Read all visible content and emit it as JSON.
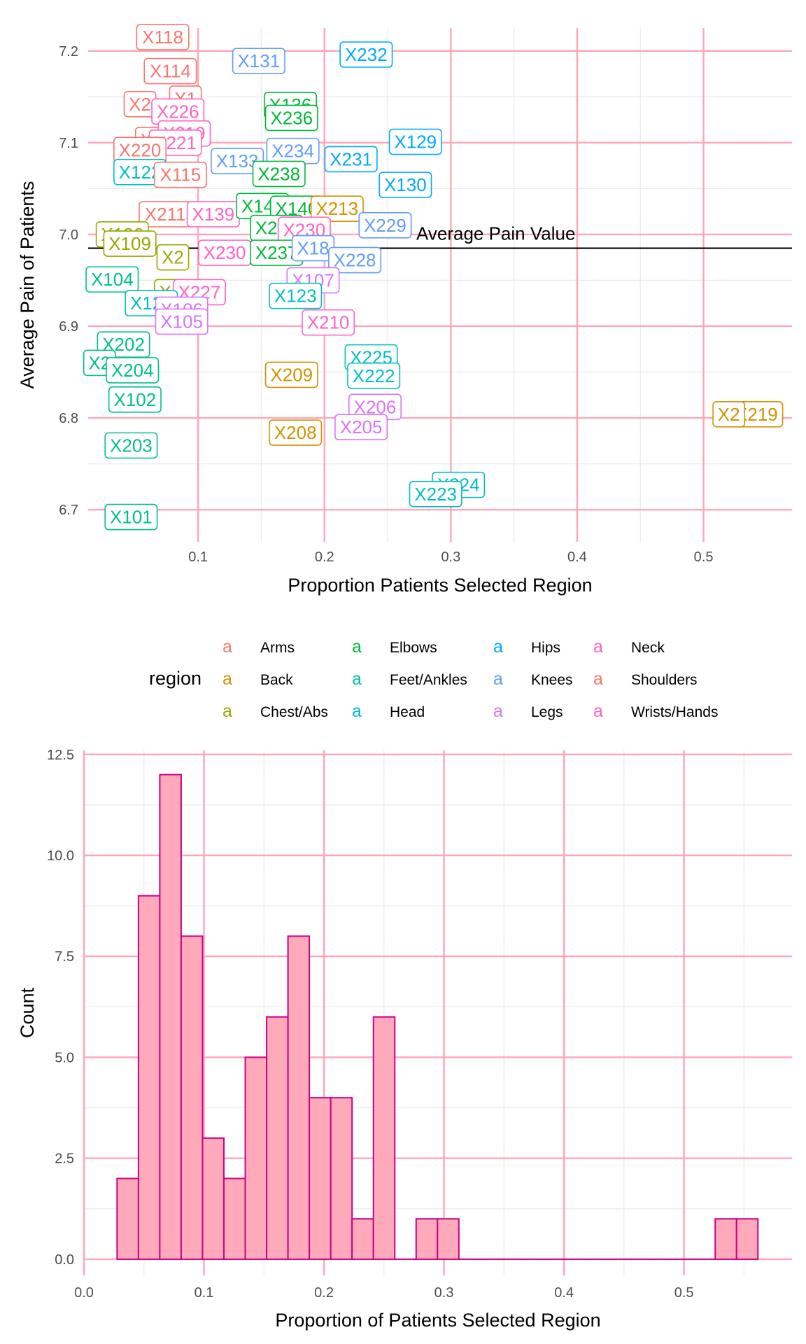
{
  "chart_data": [
    {
      "type": "scatter",
      "title": "",
      "xlabel": "Proportion Patients Selected Region",
      "ylabel": "Average Pain of Patients",
      "xlim": [
        0.013,
        0.57
      ],
      "ylim": [
        6.665,
        7.225
      ],
      "x_ticks": [
        0.1,
        0.2,
        0.3,
        0.4,
        0.5
      ],
      "x_tick_labels": [
        "0.1",
        "0.2",
        "0.3",
        "0.4",
        "0.5"
      ],
      "y_ticks": [
        6.7,
        6.8,
        6.9,
        7.0,
        7.1,
        7.2
      ],
      "y_tick_labels": [
        "6.7",
        "6.8",
        "6.9",
        "7.0",
        "7.1",
        "7.2"
      ],
      "grid": true,
      "reference_line": {
        "y": 6.985,
        "label": "Average Pain Value"
      },
      "legend": {
        "title": "region",
        "position": "bottom",
        "key_glyph": "a",
        "entries": [
          {
            "name": "Arms",
            "color": "#F8766D"
          },
          {
            "name": "Back",
            "color": "#D39200"
          },
          {
            "name": "Chest/Abs",
            "color": "#93AA00"
          },
          {
            "name": "Elbows",
            "color": "#00BA38"
          },
          {
            "name": "Feet/Ankles",
            "color": "#00C19F"
          },
          {
            "name": "Head",
            "color": "#00B9E3"
          },
          {
            "name": "Hips",
            "color": "#00A6FF"
          },
          {
            "name": "Knees",
            "color": "#619CFF"
          },
          {
            "name": "Legs",
            "color": "#DB72FB"
          },
          {
            "name": "Neck",
            "color": "#FF61C3"
          },
          {
            "name": "Shoulders",
            "color": "#F8766D"
          },
          {
            "name": "Wrists/Hands",
            "color": "#FF61C3"
          }
        ]
      },
      "points": [
        {
          "label": "X118",
          "x": 0.072,
          "y": 7.215,
          "color": "#F8766D"
        },
        {
          "label": "X114",
          "x": 0.078,
          "y": 7.178,
          "color": "#F8766D"
        },
        {
          "label": "X131",
          "x": 0.148,
          "y": 7.189,
          "color": "#619CFF"
        },
        {
          "label": "X232",
          "x": 0.233,
          "y": 7.196,
          "color": "#00A9FF"
        },
        {
          "label": "X2",
          "x": 0.054,
          "y": 7.142,
          "color": "#F8766D"
        },
        {
          "label": "X1",
          "x": 0.09,
          "y": 7.148,
          "color": "#F8766D"
        },
        {
          "label": "X226",
          "x": 0.084,
          "y": 7.134,
          "color": "#FF61C3"
        },
        {
          "label": "X136",
          "x": 0.173,
          "y": 7.141,
          "color": "#00BA38"
        },
        {
          "label": "X236",
          "x": 0.174,
          "y": 7.127,
          "color": "#00BA38"
        },
        {
          "label": "X1",
          "x": 0.063,
          "y": 7.103,
          "color": "#F8766D"
        },
        {
          "label": "X219",
          "x": 0.089,
          "y": 7.11,
          "color": "#FF61C3"
        },
        {
          "label": "X221",
          "x": 0.082,
          "y": 7.1,
          "color": "#FF61C3"
        },
        {
          "label": "X220",
          "x": 0.054,
          "y": 7.092,
          "color": "#F8766D"
        },
        {
          "label": "X129",
          "x": 0.272,
          "y": 7.101,
          "color": "#00A9FF"
        },
        {
          "label": "X234",
          "x": 0.175,
          "y": 7.091,
          "color": "#619CFF"
        },
        {
          "label": "X231",
          "x": 0.221,
          "y": 7.082,
          "color": "#00A9FF"
        },
        {
          "label": "X133",
          "x": 0.131,
          "y": 7.08,
          "color": "#619CFF"
        },
        {
          "label": "X122",
          "x": 0.054,
          "y": 7.068,
          "color": "#00BFC4"
        },
        {
          "label": "X115",
          "x": 0.086,
          "y": 7.065,
          "color": "#F8766D"
        },
        {
          "label": "X238",
          "x": 0.164,
          "y": 7.066,
          "color": "#00BA38"
        },
        {
          "label": "X130",
          "x": 0.264,
          "y": 7.054,
          "color": "#00A9FF"
        },
        {
          "label": "X211",
          "x": 0.074,
          "y": 7.022,
          "color": "#F8766D"
        },
        {
          "label": "X139",
          "x": 0.112,
          "y": 7.022,
          "color": "#FF61C3"
        },
        {
          "label": "X141",
          "x": 0.151,
          "y": 7.031,
          "color": "#00BA38"
        },
        {
          "label": "X140",
          "x": 0.178,
          "y": 7.028,
          "color": "#00BA38"
        },
        {
          "label": "X213",
          "x": 0.21,
          "y": 7.028,
          "color": "#D39200"
        },
        {
          "label": "X229",
          "x": 0.248,
          "y": 7.01,
          "color": "#619CFF"
        },
        {
          "label": "X235",
          "x": 0.162,
          "y": 7.007,
          "color": "#00BA38"
        },
        {
          "label": "X230",
          "x": 0.184,
          "y": 7.005,
          "color": "#FF61C3"
        },
        {
          "label": "X106",
          "x": 0.04,
          "y": 7.0,
          "color": "#93AA00"
        },
        {
          "label": "X109",
          "x": 0.046,
          "y": 6.99,
          "color": "#93AA00"
        },
        {
          "label": "X230",
          "x": 0.121,
          "y": 6.98,
          "color": "#FF61C3"
        },
        {
          "label": "X237",
          "x": 0.162,
          "y": 6.98,
          "color": "#00BA38"
        },
        {
          "label": "X2",
          "x": 0.08,
          "y": 6.975,
          "color": "#93AA00"
        },
        {
          "label": "X18",
          "x": 0.191,
          "y": 6.985,
          "color": "#619CFF"
        },
        {
          "label": "X228",
          "x": 0.224,
          "y": 6.972,
          "color": "#619CFF"
        },
        {
          "label": "X104",
          "x": 0.032,
          "y": 6.951,
          "color": "#00C08B"
        },
        {
          "label": "X107",
          "x": 0.191,
          "y": 6.95,
          "color": "#DB72FB"
        },
        {
          "label": "X2",
          "x": 0.078,
          "y": 6.937,
          "color": "#93AA00"
        },
        {
          "label": "X227",
          "x": 0.101,
          "y": 6.937,
          "color": "#FF61C3"
        },
        {
          "label": "X123",
          "x": 0.177,
          "y": 6.933,
          "color": "#00BFC4"
        },
        {
          "label": "X121",
          "x": 0.063,
          "y": 6.925,
          "color": "#00BFC4"
        },
        {
          "label": "X106",
          "x": 0.087,
          "y": 6.918,
          "color": "#DB72FB"
        },
        {
          "label": "X105",
          "x": 0.087,
          "y": 6.905,
          "color": "#DB72FB"
        },
        {
          "label": "X210",
          "x": 0.203,
          "y": 6.904,
          "color": "#FF61C3"
        },
        {
          "label": "X202",
          "x": 0.041,
          "y": 6.88,
          "color": "#00C08B"
        },
        {
          "label": "X2",
          "x": 0.022,
          "y": 6.86,
          "color": "#00C08B"
        },
        {
          "label": "X204",
          "x": 0.048,
          "y": 6.852,
          "color": "#00C08B"
        },
        {
          "label": "X225",
          "x": 0.237,
          "y": 6.866,
          "color": "#00BFC4"
        },
        {
          "label": "X222",
          "x": 0.239,
          "y": 6.846,
          "color": "#00BFC4"
        },
        {
          "label": "X209",
          "x": 0.174,
          "y": 6.847,
          "color": "#D39200"
        },
        {
          "label": "X102",
          "x": 0.05,
          "y": 6.82,
          "color": "#00C08B"
        },
        {
          "label": "X206",
          "x": 0.24,
          "y": 6.812,
          "color": "#DB72FB"
        },
        {
          "label": "X219",
          "x": 0.542,
          "y": 6.804,
          "color": "#D39200"
        },
        {
          "label": "X2",
          "x": 0.52,
          "y": 6.804,
          "color": "#D39200"
        },
        {
          "label": "X205",
          "x": 0.229,
          "y": 6.79,
          "color": "#DB72FB"
        },
        {
          "label": "X208",
          "x": 0.177,
          "y": 6.784,
          "color": "#D39200"
        },
        {
          "label": "X203",
          "x": 0.047,
          "y": 6.77,
          "color": "#00C08B"
        },
        {
          "label": "X224",
          "x": 0.306,
          "y": 6.727,
          "color": "#00BFC4"
        },
        {
          "label": "X223",
          "x": 0.288,
          "y": 6.717,
          "color": "#00BFC4"
        },
        {
          "label": "X101",
          "x": 0.047,
          "y": 6.692,
          "color": "#00C08B"
        }
      ]
    },
    {
      "type": "bar",
      "title": "",
      "xlabel": "Proportion of Patients Selected Region",
      "ylabel": "Count",
      "xlim": [
        0.0,
        0.59
      ],
      "ylim": [
        -0.4,
        12.6
      ],
      "x_ticks": [
        0.0,
        0.1,
        0.2,
        0.3,
        0.4,
        0.5
      ],
      "x_tick_labels": [
        "0.0",
        "0.1",
        "0.2",
        "0.3",
        "0.4",
        "0.5"
      ],
      "y_ticks": [
        0.0,
        2.5,
        5.0,
        7.5,
        10.0,
        12.5
      ],
      "y_tick_labels": [
        "0.0",
        "2.5",
        "5.0",
        "7.5",
        "10.0",
        "12.5"
      ],
      "grid": true,
      "bin_width": 0.0178,
      "bin_start": 0.0276,
      "counts": [
        2,
        9,
        12,
        8,
        3,
        2,
        5,
        6,
        8,
        4,
        4,
        1,
        6,
        0,
        1,
        1,
        0,
        0,
        0,
        0,
        0,
        0,
        0,
        0,
        0,
        0,
        0,
        0,
        1,
        1
      ],
      "fill_color": "#FFAABB",
      "edge_color": "#CC0088"
    }
  ]
}
